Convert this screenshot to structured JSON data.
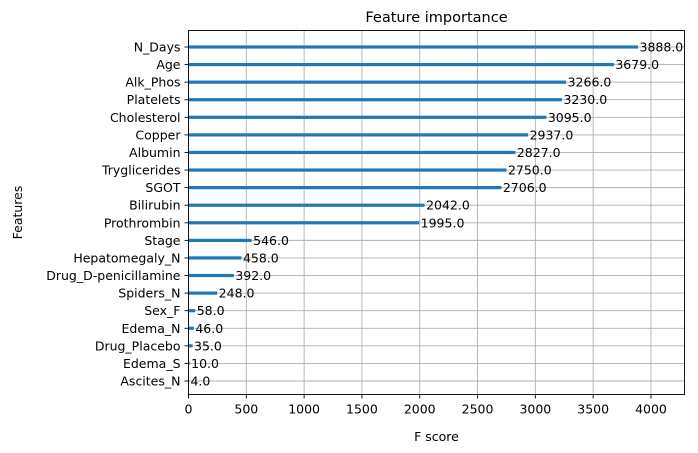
{
  "chart_data": {
    "type": "bar",
    "orientation": "horizontal",
    "title": "Feature importance",
    "xlabel": "F score",
    "ylabel": "Features",
    "xlim": [
      0,
      4290
    ],
    "xticks": [
      0,
      500,
      1000,
      1500,
      2000,
      2500,
      3000,
      3500,
      4000
    ],
    "grid": true,
    "bar_color": "#1f77b4",
    "categories": [
      "N_Days",
      "Age",
      "Alk_Phos",
      "Platelets",
      "Cholesterol",
      "Copper",
      "Albumin",
      "Tryglicerides",
      "SGOT",
      "Bilirubin",
      "Prothrombin",
      "Stage",
      "Hepatomegaly_N",
      "Drug_D-penicillamine",
      "Spiders_N",
      "Sex_F",
      "Edema_N",
      "Drug_Placebo",
      "Edema_S",
      "Ascites_N"
    ],
    "values": [
      3888.0,
      3679.0,
      3266.0,
      3230.0,
      3095.0,
      2937.0,
      2827.0,
      2750.0,
      2706.0,
      2042.0,
      1995.0,
      546.0,
      458.0,
      392.0,
      248.0,
      58.0,
      46.0,
      35.0,
      10.0,
      4.0
    ],
    "value_labels": [
      "3888.0",
      "3679.0",
      "3266.0",
      "3230.0",
      "3095.0",
      "2937.0",
      "2827.0",
      "2750.0",
      "2706.0",
      "2042.0",
      "1995.0",
      "546.0",
      "458.0",
      "392.0",
      "248.0",
      "58.0",
      "46.0",
      "35.0",
      "10.0",
      "4.0"
    ]
  }
}
